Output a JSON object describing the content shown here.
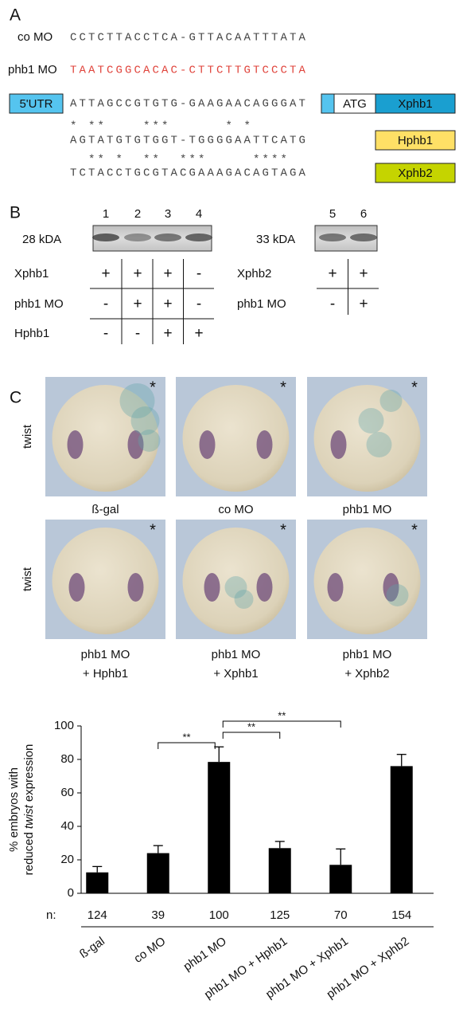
{
  "panel_a": {
    "label": "A",
    "morpholinos": [
      {
        "name": "co MO",
        "sequence": "CCTCTTACCTCA-GTTACAATTTATA",
        "color": "#444444"
      },
      {
        "name": "phb1 MO",
        "sequence": "TAATCGGCACAC-CTTCTTGTCCCTA",
        "color": "#e0443c"
      }
    ],
    "utr_label": "5'UTR",
    "start_codon": "ATG",
    "alignment": [
      {
        "sequence": "ATTAGCCGTGTG-GAAGAACAGGGAT",
        "box": "Xphb1",
        "color": "#1a9fd0"
      },
      {
        "sequence": "AGTATGTGTGGT-TGGGGAATTCATG",
        "box": "Hphb1",
        "color": "#ffe066"
      },
      {
        "sequence": "TCTACCTGCGTACGAAAGACAGTAGA",
        "box": "Xphb2",
        "color": "#c5d400"
      }
    ],
    "conservation": [
      "* **    ***      * *",
      "  ** *  **  ***     ****"
    ]
  },
  "panel_b": {
    "label": "B",
    "blots": [
      {
        "lanes": [
          1,
          2,
          3,
          4
        ],
        "size": "28 kDA",
        "rows": [
          {
            "name": "Xphb1",
            "signs": [
              "+",
              "+",
              "+",
              "-"
            ]
          },
          {
            "name": "phb1 MO",
            "signs": [
              "-",
              "+",
              "+",
              "-"
            ]
          },
          {
            "name": "Hphb1",
            "signs": [
              "-",
              "-",
              "+",
              "+"
            ]
          }
        ]
      },
      {
        "lanes": [
          5,
          6
        ],
        "size": "33 kDA",
        "rows": [
          {
            "name": "Xphb2",
            "signs": [
              "+",
              "+"
            ]
          },
          {
            "name": "phb1 MO",
            "signs": [
              "-",
              "+"
            ]
          }
        ]
      }
    ]
  },
  "panel_c": {
    "label": "C",
    "row_label": "twist",
    "marker": "*",
    "images": [
      [
        "ß-gal"
      ],
      [
        "co MO"
      ],
      [
        "phb1 MO"
      ],
      [
        "phb1 MO",
        "+ Hphb1"
      ],
      [
        "phb1 MO",
        "+ Xphb1"
      ],
      [
        "phb1 MO",
        "+ Xphb2"
      ]
    ]
  },
  "chart_data": {
    "type": "bar",
    "y_label": {
      "line1": "% embryos with",
      "line2": [
        "reduced",
        "twist",
        "expression"
      ]
    },
    "categories": [
      "ß-gal",
      "co MO",
      "phb1 MO",
      "phb1 MO + Hphb1",
      "phb1 MO + Xphb1",
      "phb1 MO + Xphb2"
    ],
    "values": [
      12.5,
      24,
      78.5,
      27,
      17,
      76
    ],
    "errors": [
      3.5,
      4.5,
      9,
      4,
      9.5,
      7
    ],
    "color": "#000000",
    "ylim": [
      0,
      100
    ],
    "yticks": [
      0,
      20,
      40,
      60,
      80,
      100
    ],
    "n_label": "n:",
    "n": [
      124,
      39,
      100,
      125,
      70,
      154
    ],
    "significance": [
      {
        "between": [
          "co MO",
          "phb1 MO"
        ],
        "label": "**"
      },
      {
        "between": [
          "phb1 MO",
          "phb1 MO + Hphb1"
        ],
        "label": "**"
      },
      {
        "between": [
          "phb1 MO",
          "phb1 MO + Xphb1"
        ],
        "label": "**"
      }
    ]
  }
}
